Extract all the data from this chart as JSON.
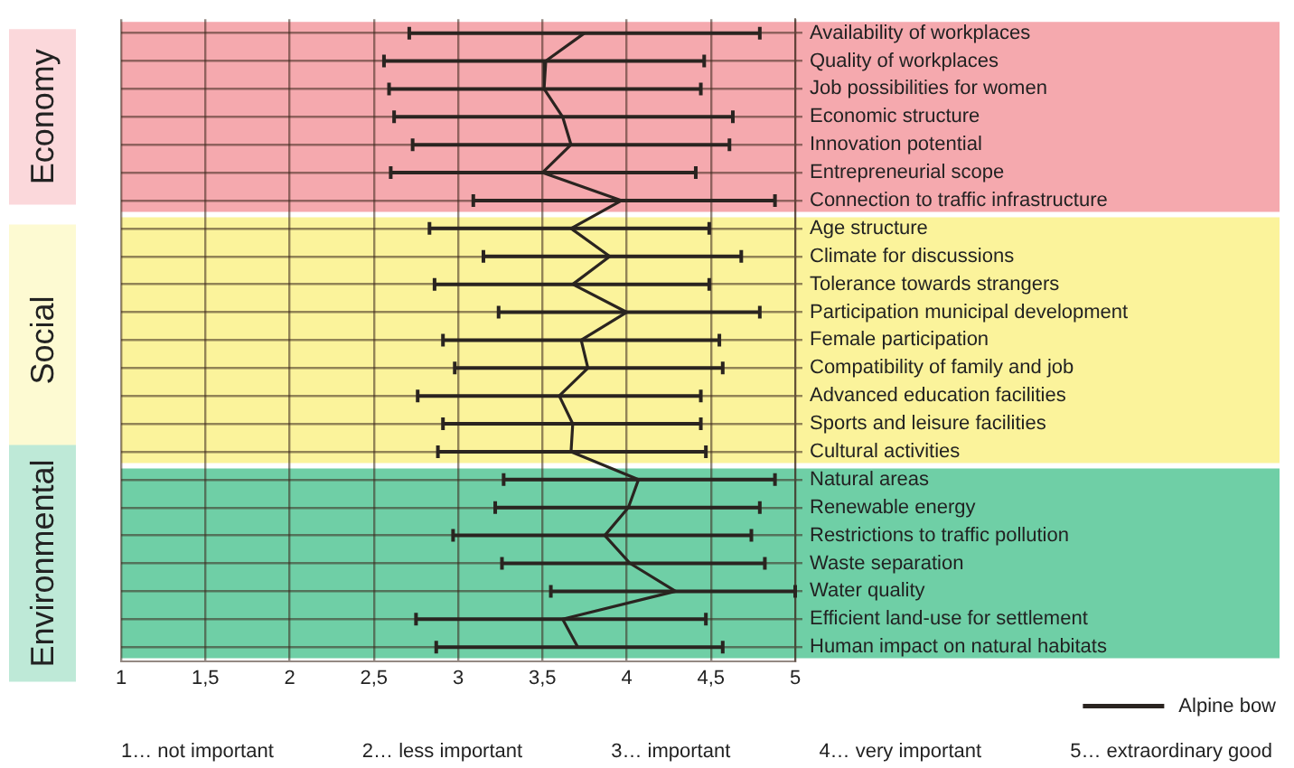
{
  "chart_data": {
    "type": "line",
    "orientation": "horizontal",
    "categories": [
      "Availability of workplaces",
      "Quality of workplaces",
      "Job possibilities for women",
      "Economic structure",
      "Innovation potential",
      "Entrepreneurial scope",
      "Connection to traffic infrastructure",
      "Age structure",
      "Climate for discussions",
      "Tolerance towards strangers",
      "Participation municipal development",
      "Female participation",
      "Compatibility of family and job",
      "Advanced education facilities",
      "Sports and leisure facilities",
      "Cultural activities",
      "Natural areas",
      "Renewable energy",
      "Restrictions to traffic pollution",
      "Waste separation",
      "Water quality",
      "Efficient land-use for settlement",
      "Human impact on natural habitats"
    ],
    "series": [
      {
        "name": "Alpine bow",
        "color": "#2a2420",
        "values": [
          3.75,
          3.52,
          3.51,
          3.62,
          3.67,
          3.5,
          3.97,
          3.67,
          3.9,
          3.68,
          4.0,
          3.73,
          3.77,
          3.6,
          3.68,
          3.67,
          4.07,
          4.01,
          3.87,
          4.02,
          4.29,
          3.62,
          3.71
        ],
        "errors": [
          [
            2.71,
            4.79
          ],
          [
            2.56,
            4.46
          ],
          [
            2.59,
            4.44
          ],
          [
            2.62,
            4.63
          ],
          [
            2.73,
            4.61
          ],
          [
            2.6,
            4.41
          ],
          [
            3.09,
            4.88
          ],
          [
            2.83,
            4.49
          ],
          [
            3.15,
            4.68
          ],
          [
            2.86,
            4.49
          ],
          [
            3.24,
            4.79
          ],
          [
            2.91,
            4.55
          ],
          [
            2.98,
            4.57
          ],
          [
            2.76,
            4.44
          ],
          [
            2.91,
            4.44
          ],
          [
            2.88,
            4.47
          ],
          [
            3.27,
            4.88
          ],
          [
            3.22,
            4.79
          ],
          [
            2.97,
            4.74
          ],
          [
            3.26,
            4.82
          ],
          [
            3.55,
            5.0
          ],
          [
            2.75,
            4.47
          ],
          [
            2.87,
            4.57
          ]
        ]
      }
    ],
    "xlim": [
      1,
      5
    ],
    "xticks": [
      1,
      {
        "value": 1.5,
        "label": "1,5"
      },
      2,
      {
        "value": 2.5,
        "label": "2,5"
      },
      3,
      {
        "value": 3.5,
        "label": "3,5"
      },
      4,
      {
        "value": 4.5,
        "label": "4,5"
      },
      5
    ],
    "bands": [
      {
        "axis": "y",
        "from": "Availability of workplaces",
        "to": "Connection to traffic infrastructure",
        "label": "Economy",
        "color": "#f5a9ae"
      },
      {
        "axis": "y",
        "from": "Age structure",
        "to": "Cultural activities",
        "label": "Social",
        "color": "#fbf39b"
      },
      {
        "axis": "y",
        "from": "Natural areas",
        "to": "Human impact on natural habitats",
        "label": "Environmental",
        "color": "#6fcfa6"
      }
    ],
    "annotations": [
      "1… not important",
      "2… less important",
      "3… important",
      "4… very important",
      "5… extraordinary good"
    ],
    "grid": true,
    "legend": "bottom right",
    "marker": "none",
    "line_style": "solid"
  }
}
